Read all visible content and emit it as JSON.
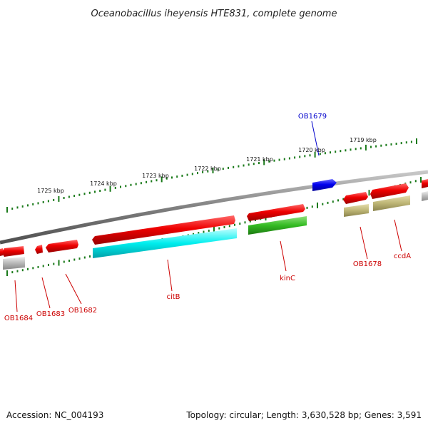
{
  "title": "Oceanobacillus iheyensis HTE831, complete genome",
  "footer": {
    "accession": "Accession: NC_004193",
    "summary": "Topology: circular; Length: 3,630,528 bp; Genes: 3,591"
  },
  "scale_labels": [
    "1719 kbp",
    "1720 kbp",
    "1721 kbp",
    "1722 kbp",
    "1723 kbp",
    "1724 kbp",
    "1725 kbp"
  ],
  "genes": [
    {
      "name": "OB1679",
      "color": "#0000ff"
    },
    {
      "name": "OB1678",
      "color": "#cc0000"
    },
    {
      "name": "ccdA",
      "color": "#cc0000"
    },
    {
      "name": "kinC",
      "color": "#cc0000"
    },
    {
      "name": "citB",
      "color": "#cc0000"
    },
    {
      "name": "OB1682",
      "color": "#cc0000"
    },
    {
      "name": "OB1683",
      "color": "#cc0000"
    },
    {
      "name": "OB1684",
      "color": "#cc0000"
    }
  ],
  "colors": {
    "forward_cds": "#e60000",
    "reverse_cds": "#e60000",
    "highlight": "#0000ee",
    "cyan_track": "#00e5ee",
    "green_track": "#33bb22",
    "olive_track": "#b5ae6a",
    "grey_track": "#b0b0b0",
    "backbone": "#808080",
    "ticks": "#1a7a1a"
  }
}
